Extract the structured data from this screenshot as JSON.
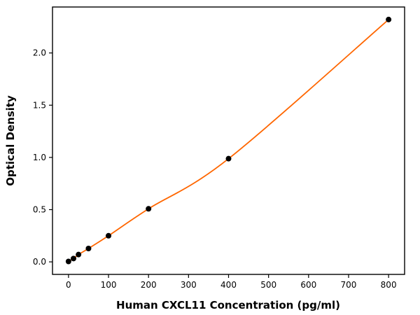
{
  "chart_data": {
    "type": "scatter",
    "title": "",
    "xlabel": "Human CXCL11 Concentration (pg/ml)",
    "ylabel": "Optical Density",
    "x": [
      0,
      12.5,
      25,
      50,
      100,
      200,
      400,
      800
    ],
    "y": [
      0.004,
      0.032,
      0.07,
      0.128,
      0.25,
      0.508,
      0.988,
      2.32
    ],
    "fit_curve": "smooth curve through standard points",
    "xlim": [
      -40,
      840
    ],
    "ylim": [
      -0.12,
      2.44
    ],
    "xticks": {
      "values": [
        0,
        100,
        200,
        300,
        400,
        500,
        600,
        700,
        800
      ],
      "labels": [
        "0",
        "100",
        "200",
        "300",
        "400",
        "500",
        "600",
        "700",
        "800"
      ]
    },
    "yticks": {
      "values": [
        0.0,
        0.5,
        1.0,
        1.5,
        2.0
      ],
      "labels": [
        "0.0",
        "0.5",
        "1.0",
        "1.5",
        "2.0"
      ]
    },
    "grid": false,
    "legend": "none",
    "marker_color": "#000000",
    "line_color": "#ff6600",
    "axis_color": "#000000",
    "background": "#ffffff"
  }
}
